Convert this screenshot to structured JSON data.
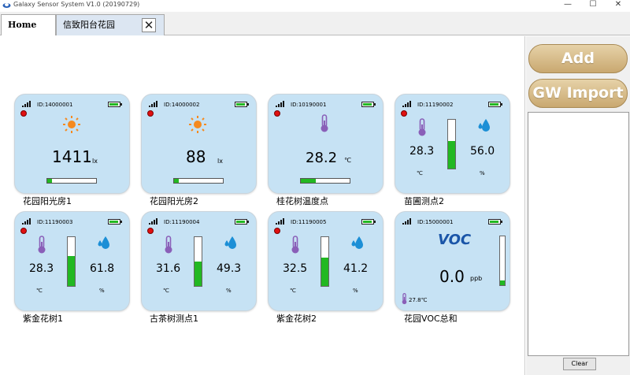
{
  "window": {
    "title": "Galaxy Sensor System V1.0   (20190729)",
    "minimize": "—",
    "maximize": "☐",
    "close": "✕"
  },
  "tabs": {
    "home": "Home",
    "active": "信致阳台花园",
    "close": "✕"
  },
  "right_panel": {
    "add": "Add",
    "gw_import": "GW Import",
    "clear": "Clear"
  },
  "colors": {
    "card_bg": "#c6e2f4",
    "bar_green": "#22b822",
    "status_red": "#e01010",
    "voc_blue": "#1a55a8",
    "button_gold": "#c9a870"
  },
  "cards": [
    {
      "id": "ID:14000001",
      "type": "light",
      "value": "1411",
      "unit": "lx",
      "level": 0.1,
      "caption": "花园阳光房1"
    },
    {
      "id": "ID:14000002",
      "type": "light",
      "value": "88",
      "unit": "lx",
      "level": 0.1,
      "caption": "花园阳光房2"
    },
    {
      "id": "ID:10190001",
      "type": "temperature",
      "value": "28.2",
      "unit": "℃",
      "level": 0.3,
      "caption": "桂花树温度点"
    },
    {
      "id": "ID:11190002",
      "type": "temp_humidity",
      "temp": "28.3",
      "temp_unit": "℃",
      "humidity": "56.0",
      "humidity_unit": "%",
      "level": 0.56,
      "caption": "苗圃测点2"
    },
    {
      "id": "ID:11190003",
      "type": "temp_humidity",
      "temp": "28.3",
      "temp_unit": "℃",
      "humidity": "61.8",
      "humidity_unit": "%",
      "level": 0.62,
      "caption": "紫金花树1"
    },
    {
      "id": "ID:11190004",
      "type": "temp_humidity",
      "temp": "31.6",
      "temp_unit": "℃",
      "humidity": "49.3",
      "humidity_unit": "%",
      "level": 0.5,
      "caption": "古茶树测点1"
    },
    {
      "id": "ID:11190005",
      "type": "temp_humidity",
      "temp": "32.5",
      "temp_unit": "℃",
      "humidity": "41.2",
      "humidity_unit": "%",
      "level": 0.58,
      "caption": "紫金花树2"
    },
    {
      "id": "ID:15000001",
      "type": "voc",
      "label": "VOC",
      "value": "0.0",
      "unit": "ppb",
      "temp": "27.8℃",
      "level": 0.1,
      "caption": "花园VOC总和"
    }
  ]
}
